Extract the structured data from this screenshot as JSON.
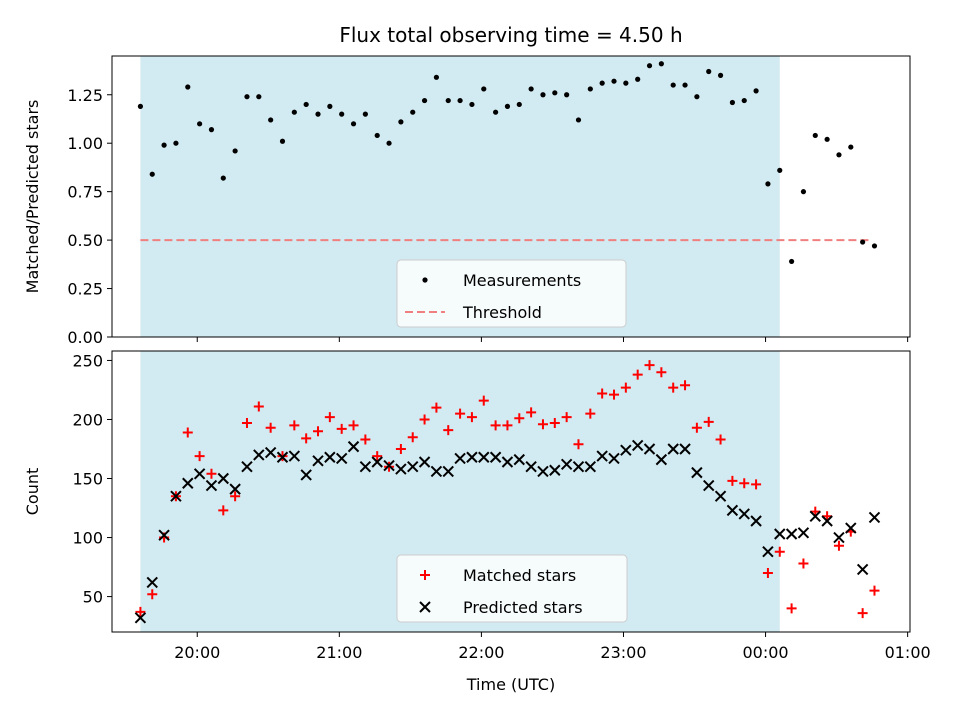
{
  "chart_data": [
    {
      "type": "scatter",
      "title": "Flux total observing time = 4.50 h",
      "xlabel": "",
      "ylabel": "Matched/Predicted stars",
      "ylim": [
        0,
        1.45
      ],
      "yticks": [
        0.0,
        0.25,
        0.5,
        0.75,
        1.0,
        1.25
      ],
      "ytick_labels": [
        "0.00",
        "0.25",
        "0.50",
        "0.75",
        "1.00",
        "1.25"
      ],
      "x_axis": "time of day (UTC), shared with lower panel, no tick labels shown",
      "shaded_interval": [
        "19:36",
        "00:06"
      ],
      "shade_color": "#add8e6",
      "threshold": {
        "name": "Threshold",
        "value": 0.5,
        "x_range": [
          "19:36",
          "00:45"
        ],
        "color": "#f08080",
        "style": "dashed"
      },
      "legend": {
        "position": "bottom-center",
        "entries": [
          "Measurements",
          "Threshold"
        ]
      },
      "series": [
        {
          "name": "Measurements",
          "color": "#000000",
          "marker": "dot",
          "points": [
            [
              "19:36",
              1.19
            ],
            [
              "19:41",
              0.84
            ],
            [
              "19:46",
              0.99
            ],
            [
              "19:51",
              1.0
            ],
            [
              "19:56",
              1.29
            ],
            [
              "20:01",
              1.1
            ],
            [
              "20:06",
              1.07
            ],
            [
              "20:11",
              0.82
            ],
            [
              "20:16",
              0.96
            ],
            [
              "20:21",
              1.24
            ],
            [
              "20:26",
              1.24
            ],
            [
              "20:31",
              1.12
            ],
            [
              "20:36",
              1.01
            ],
            [
              "20:41",
              1.16
            ],
            [
              "20:46",
              1.2
            ],
            [
              "20:51",
              1.15
            ],
            [
              "20:56",
              1.19
            ],
            [
              "21:01",
              1.15
            ],
            [
              "21:06",
              1.1
            ],
            [
              "21:11",
              1.15
            ],
            [
              "21:16",
              1.04
            ],
            [
              "21:21",
              1.0
            ],
            [
              "21:26",
              1.11
            ],
            [
              "21:31",
              1.16
            ],
            [
              "21:36",
              1.22
            ],
            [
              "21:41",
              1.34
            ],
            [
              "21:46",
              1.22
            ],
            [
              "21:51",
              1.22
            ],
            [
              "21:56",
              1.2
            ],
            [
              "22:01",
              1.28
            ],
            [
              "22:06",
              1.16
            ],
            [
              "22:11",
              1.19
            ],
            [
              "22:16",
              1.2
            ],
            [
              "22:21",
              1.28
            ],
            [
              "22:26",
              1.25
            ],
            [
              "22:31",
              1.26
            ],
            [
              "22:36",
              1.25
            ],
            [
              "22:41",
              1.12
            ],
            [
              "22:46",
              1.28
            ],
            [
              "22:51",
              1.31
            ],
            [
              "22:56",
              1.32
            ],
            [
              "23:01",
              1.31
            ],
            [
              "23:06",
              1.33
            ],
            [
              "23:11",
              1.4
            ],
            [
              "23:16",
              1.41
            ],
            [
              "23:21",
              1.3
            ],
            [
              "23:26",
              1.3
            ],
            [
              "23:31",
              1.24
            ],
            [
              "23:36",
              1.37
            ],
            [
              "23:41",
              1.35
            ],
            [
              "23:46",
              1.21
            ],
            [
              "23:51",
              1.22
            ],
            [
              "23:56",
              1.27
            ],
            [
              "00:01",
              0.79
            ],
            [
              "00:06",
              0.86
            ],
            [
              "00:11",
              0.39
            ],
            [
              "00:16",
              0.75
            ],
            [
              "00:21",
              1.04
            ],
            [
              "00:26",
              1.02
            ],
            [
              "00:31",
              0.94
            ],
            [
              "00:36",
              0.98
            ],
            [
              "00:41",
              0.49
            ],
            [
              "00:46",
              0.47
            ]
          ]
        }
      ]
    },
    {
      "type": "scatter",
      "title": "",
      "xlabel": "Time (UTC)",
      "ylabel": "Count",
      "ylim": [
        20,
        258
      ],
      "yticks": [
        50,
        100,
        150,
        200,
        250
      ],
      "ytick_labels": [
        "50",
        "100",
        "150",
        "200",
        "250"
      ],
      "x_domain": [
        "19:24",
        "01:01"
      ],
      "xticks": [
        "20:00",
        "21:00",
        "22:00",
        "23:00",
        "00:00",
        "01:00"
      ],
      "xtick_labels": [
        "20:00",
        "21:00",
        "22:00",
        "23:00",
        "00:00",
        "01:00"
      ],
      "shaded_interval": [
        "19:36",
        "00:06"
      ],
      "shade_color": "#add8e6",
      "legend": {
        "position": "bottom-center",
        "entries": [
          "Matched stars",
          "Predicted stars"
        ]
      },
      "series": [
        {
          "name": "Matched stars",
          "color": "#ff0000",
          "marker": "plus",
          "points": [
            [
              "19:36",
              37
            ],
            [
              "19:41",
              52
            ],
            [
              "19:46",
              100
            ],
            [
              "19:51",
              135
            ],
            [
              "19:56",
              189
            ],
            [
              "20:01",
              169
            ],
            [
              "20:06",
              154
            ],
            [
              "20:11",
              123
            ],
            [
              "20:16",
              135
            ],
            [
              "20:21",
              197
            ],
            [
              "20:26",
              211
            ],
            [
              "20:31",
              193
            ],
            [
              "20:36",
              169
            ],
            [
              "20:41",
              195
            ],
            [
              "20:46",
              184
            ],
            [
              "20:51",
              190
            ],
            [
              "20:56",
              202
            ],
            [
              "21:01",
              192
            ],
            [
              "21:06",
              195
            ],
            [
              "21:11",
              183
            ],
            [
              "21:16",
              169
            ],
            [
              "21:21",
              160
            ],
            [
              "21:26",
              175
            ],
            [
              "21:31",
              185
            ],
            [
              "21:36",
              200
            ],
            [
              "21:41",
              210
            ],
            [
              "21:46",
              191
            ],
            [
              "21:51",
              205
            ],
            [
              "21:56",
              202
            ],
            [
              "22:01",
              216
            ],
            [
              "22:06",
              195
            ],
            [
              "22:11",
              195
            ],
            [
              "22:16",
              201
            ],
            [
              "22:21",
              206
            ],
            [
              "22:26",
              196
            ],
            [
              "22:31",
              197
            ],
            [
              "22:36",
              202
            ],
            [
              "22:41",
              179
            ],
            [
              "22:46",
              205
            ],
            [
              "22:51",
              222
            ],
            [
              "22:56",
              221
            ],
            [
              "23:01",
              227
            ],
            [
              "23:06",
              238
            ],
            [
              "23:11",
              246
            ],
            [
              "23:16",
              240
            ],
            [
              "23:21",
              227
            ],
            [
              "23:26",
              229
            ],
            [
              "23:31",
              193
            ],
            [
              "23:36",
              198
            ],
            [
              "23:41",
              183
            ],
            [
              "23:46",
              148
            ],
            [
              "23:51",
              146
            ],
            [
              "23:56",
              145
            ],
            [
              "00:01",
              70
            ],
            [
              "00:06",
              88
            ],
            [
              "00:11",
              40
            ],
            [
              "00:16",
              78
            ],
            [
              "00:21",
              122
            ],
            [
              "00:26",
              118
            ],
            [
              "00:31",
              93
            ],
            [
              "00:36",
              105
            ],
            [
              "00:41",
              36
            ],
            [
              "00:46",
              55
            ]
          ]
        },
        {
          "name": "Predicted stars",
          "color": "#000000",
          "marker": "x",
          "points": [
            [
              "19:36",
              32
            ],
            [
              "19:41",
              62
            ],
            [
              "19:46",
              102
            ],
            [
              "19:51",
              135
            ],
            [
              "19:56",
              146
            ],
            [
              "20:01",
              154
            ],
            [
              "20:06",
              144
            ],
            [
              "20:11",
              150
            ],
            [
              "20:16",
              141
            ],
            [
              "20:21",
              160
            ],
            [
              "20:26",
              170
            ],
            [
              "20:31",
              172
            ],
            [
              "20:36",
              168
            ],
            [
              "20:41",
              169
            ],
            [
              "20:46",
              153
            ],
            [
              "20:51",
              165
            ],
            [
              "20:56",
              168
            ],
            [
              "21:01",
              167
            ],
            [
              "21:06",
              177
            ],
            [
              "21:11",
              160
            ],
            [
              "21:16",
              164
            ],
            [
              "21:21",
              161
            ],
            [
              "21:26",
              158
            ],
            [
              "21:31",
              160
            ],
            [
              "21:36",
              164
            ],
            [
              "21:41",
              156
            ],
            [
              "21:46",
              156
            ],
            [
              "21:51",
              167
            ],
            [
              "21:56",
              168
            ],
            [
              "22:01",
              168
            ],
            [
              "22:06",
              168
            ],
            [
              "22:11",
              164
            ],
            [
              "22:16",
              166
            ],
            [
              "22:21",
              160
            ],
            [
              "22:26",
              156
            ],
            [
              "22:31",
              157
            ],
            [
              "22:36",
              162
            ],
            [
              "22:41",
              160
            ],
            [
              "22:46",
              160
            ],
            [
              "22:51",
              169
            ],
            [
              "22:56",
              167
            ],
            [
              "23:01",
              174
            ],
            [
              "23:06",
              178
            ],
            [
              "23:11",
              175
            ],
            [
              "23:16",
              166
            ],
            [
              "23:21",
              175
            ],
            [
              "23:26",
              175
            ],
            [
              "23:31",
              155
            ],
            [
              "23:36",
              144
            ],
            [
              "23:41",
              135
            ],
            [
              "23:46",
              123
            ],
            [
              "23:51",
              120
            ],
            [
              "23:56",
              114
            ],
            [
              "00:01",
              88
            ],
            [
              "00:06",
              103
            ],
            [
              "00:11",
              103
            ],
            [
              "00:16",
              104
            ],
            [
              "00:21",
              118
            ],
            [
              "00:26",
              114
            ],
            [
              "00:31",
              100
            ],
            [
              "00:36",
              108
            ],
            [
              "00:41",
              73
            ],
            [
              "00:46",
              117
            ]
          ]
        }
      ]
    }
  ]
}
